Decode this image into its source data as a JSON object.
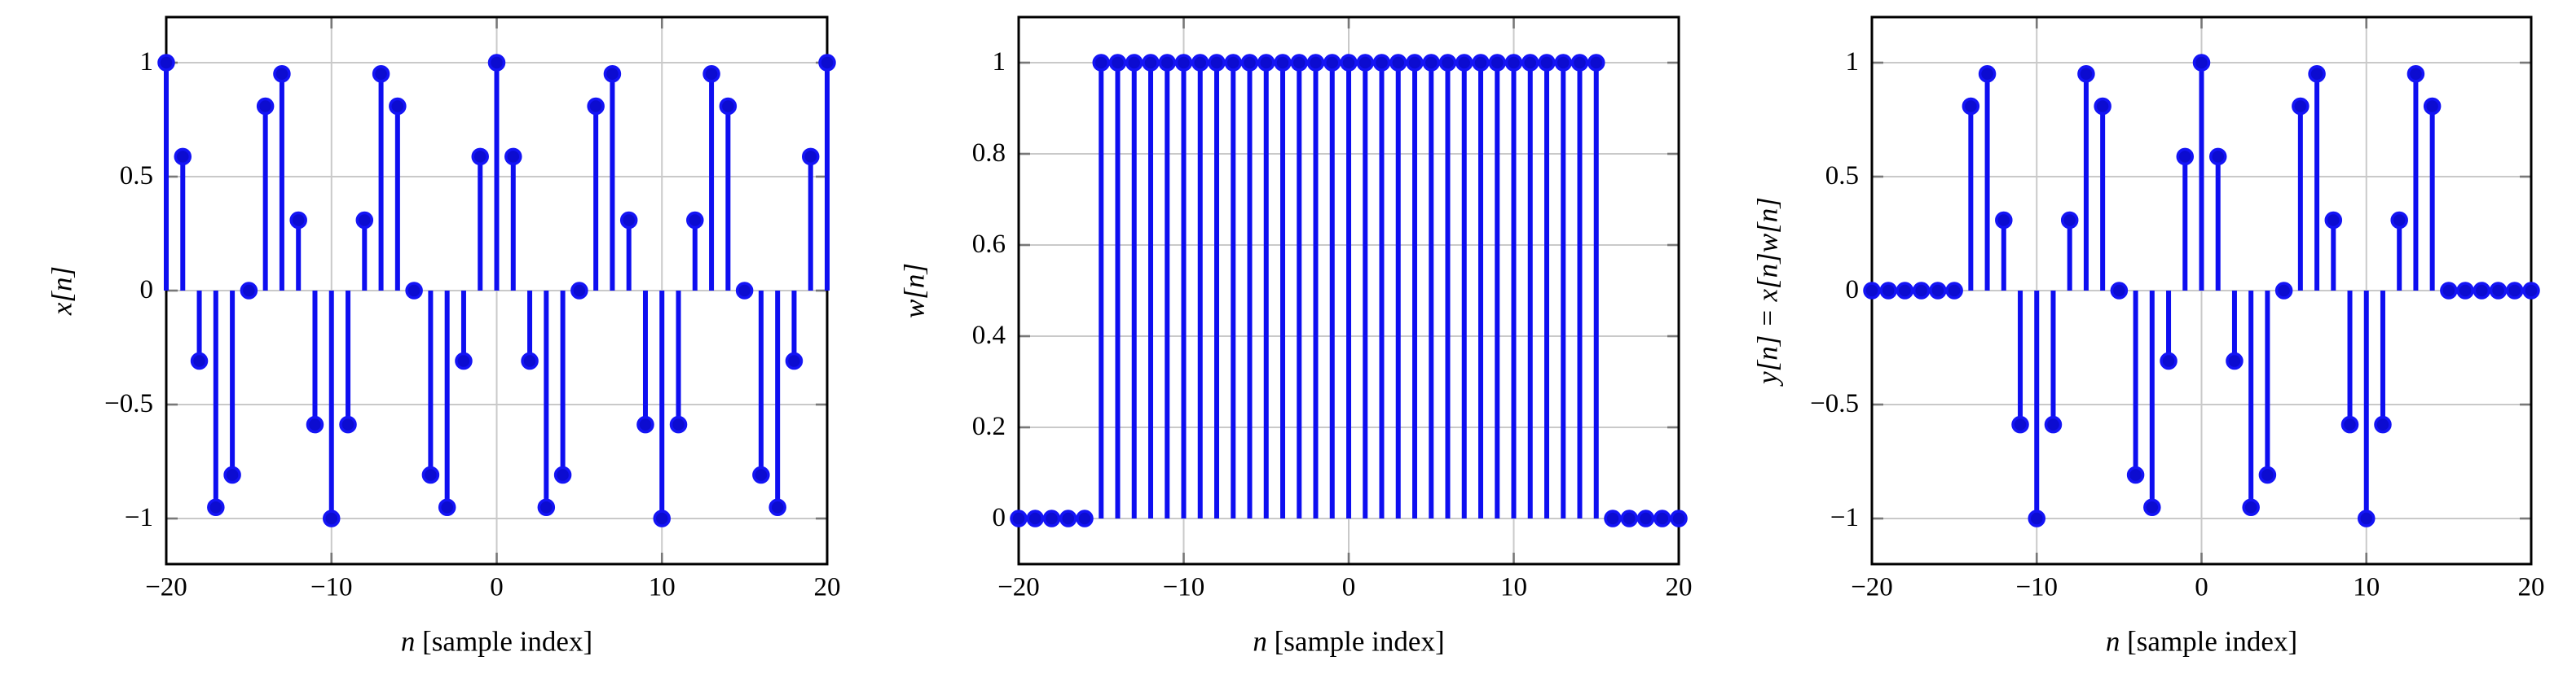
{
  "style": {
    "background": "#ffffff",
    "stem_color": "#0e0ef0",
    "marker_fill": "#0c0cd0",
    "marker_edge": "#1414f5",
    "grid_color": "#c9c9c9",
    "frame_color": "#000000",
    "tick_mark_color": "#777777",
    "text_color": "#000000"
  },
  "chart_data": [
    {
      "type": "stem",
      "title": "",
      "ylabel": "x[n]",
      "xlabel_var": "n",
      "xlabel_rest": " [sample index]",
      "x": [
        -20,
        -19,
        -18,
        -17,
        -16,
        -15,
        -14,
        -13,
        -12,
        -11,
        -10,
        -9,
        -8,
        -7,
        -6,
        -5,
        -4,
        -3,
        -2,
        -1,
        0,
        1,
        2,
        3,
        4,
        5,
        6,
        7,
        8,
        9,
        10,
        11,
        12,
        13,
        14,
        15,
        16,
        17,
        18,
        19,
        20
      ],
      "values": [
        1,
        0.588,
        -0.309,
        -0.951,
        -0.809,
        0,
        0.809,
        0.951,
        0.309,
        -0.588,
        -1,
        -0.588,
        0.309,
        0.951,
        0.809,
        0,
        -0.809,
        -0.951,
        -0.309,
        0.588,
        1,
        0.588,
        -0.309,
        -0.951,
        -0.809,
        0,
        0.809,
        0.951,
        0.309,
        -0.588,
        -1,
        -0.588,
        0.309,
        0.951,
        0.809,
        0,
        -0.809,
        -0.951,
        -0.309,
        0.588,
        1
      ],
      "xlim": [
        -20,
        20
      ],
      "ylim": [
        -1.2,
        1.2
      ],
      "xticks": [
        -20,
        -10,
        0,
        10,
        20
      ],
      "xtick_labels": [
        "−20",
        "−10",
        "0",
        "10",
        "20"
      ],
      "yticks": [
        -1,
        -0.5,
        0,
        0.5,
        1
      ],
      "ytick_labels": [
        "−1",
        "−0.5",
        "0",
        "0.5",
        "1"
      ],
      "grid": true,
      "legend": null
    },
    {
      "type": "stem",
      "title": "",
      "ylabel": "w[n]",
      "xlabel_var": "n",
      "xlabel_rest": " [sample index]",
      "x": [
        -20,
        -19,
        -18,
        -17,
        -16,
        -15,
        -14,
        -13,
        -12,
        -11,
        -10,
        -9,
        -8,
        -7,
        -6,
        -5,
        -4,
        -3,
        -2,
        -1,
        0,
        1,
        2,
        3,
        4,
        5,
        6,
        7,
        8,
        9,
        10,
        11,
        12,
        13,
        14,
        15,
        16,
        17,
        18,
        19,
        20
      ],
      "values": [
        0,
        0,
        0,
        0,
        0,
        1,
        1,
        1,
        1,
        1,
        1,
        1,
        1,
        1,
        1,
        1,
        1,
        1,
        1,
        1,
        1,
        1,
        1,
        1,
        1,
        1,
        1,
        1,
        1,
        1,
        1,
        1,
        1,
        1,
        1,
        1,
        0,
        0,
        0,
        0,
        0
      ],
      "xlim": [
        -20,
        20
      ],
      "ylim": [
        -0.1,
        1.1
      ],
      "xticks": [
        -20,
        -10,
        0,
        10,
        20
      ],
      "xtick_labels": [
        "−20",
        "−10",
        "0",
        "10",
        "20"
      ],
      "yticks": [
        0,
        0.2,
        0.4,
        0.6,
        0.8,
        1
      ],
      "ytick_labels": [
        "0",
        "0.2",
        "0.4",
        "0.6",
        "0.8",
        "1"
      ],
      "grid": true,
      "legend": null
    },
    {
      "type": "stem",
      "title": "",
      "ylabel": "y[n] = x[n]w[n]",
      "xlabel_var": "n",
      "xlabel_rest": " [sample index]",
      "x": [
        -20,
        -19,
        -18,
        -17,
        -16,
        -15,
        -14,
        -13,
        -12,
        -11,
        -10,
        -9,
        -8,
        -7,
        -6,
        -5,
        -4,
        -3,
        -2,
        -1,
        0,
        1,
        2,
        3,
        4,
        5,
        6,
        7,
        8,
        9,
        10,
        11,
        12,
        13,
        14,
        15,
        16,
        17,
        18,
        19,
        20
      ],
      "values": [
        0,
        0,
        0,
        0,
        0,
        0,
        0.809,
        0.951,
        0.309,
        -0.588,
        -1,
        -0.588,
        0.309,
        0.951,
        0.809,
        0,
        -0.809,
        -0.951,
        -0.309,
        0.588,
        1,
        0.588,
        -0.309,
        -0.951,
        -0.809,
        0,
        0.809,
        0.951,
        0.309,
        -0.588,
        -1,
        -0.588,
        0.309,
        0.951,
        0.809,
        0,
        0,
        0,
        0,
        0,
        0
      ],
      "xlim": [
        -20,
        20
      ],
      "ylim": [
        -1.2,
        1.2
      ],
      "xticks": [
        -20,
        -10,
        0,
        10,
        20
      ],
      "xtick_labels": [
        "−20",
        "−10",
        "0",
        "10",
        "20"
      ],
      "yticks": [
        -1,
        -0.5,
        0,
        0.5,
        1
      ],
      "ytick_labels": [
        "−1",
        "−0.5",
        "0",
        "0.5",
        "1"
      ],
      "grid": true,
      "legend": null
    }
  ]
}
